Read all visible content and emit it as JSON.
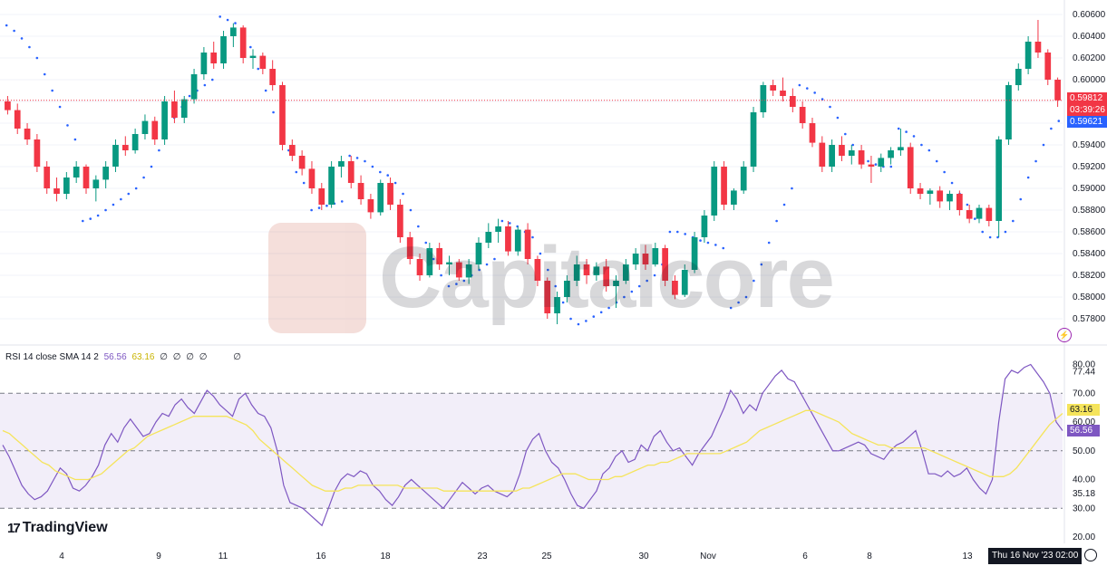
{
  "watermark": {
    "text": "Capitalcore"
  },
  "branding": {
    "logo_text": "TradingView",
    "logo_mark": "17"
  },
  "price_axis": {
    "ticks": [
      "0.60600",
      "0.60400",
      "0.60200",
      "0.60000",
      "0.59800",
      "0.59600",
      "0.59400",
      "0.59200",
      "0.59000",
      "0.58800",
      "0.58600",
      "0.58400",
      "0.58200",
      "0.58000",
      "0.57800"
    ],
    "last_price_label": "0.59812",
    "countdown_label": "03:39:26",
    "psar_label": "0.59621",
    "last_price_color": "#f23645",
    "psar_color": "#2962ff"
  },
  "rsi_axis": {
    "ticks": [
      "80.00",
      "77.44",
      "70.00",
      "60.00",
      "50.00",
      "40.00",
      "35.18",
      "30.00",
      "20.00"
    ],
    "rsi_label": "56.56",
    "sma_label": "63.16",
    "rsi_color": "#7e57c2",
    "sma_color": "#f5e45b"
  },
  "rsi_legend": {
    "title": "RSI 14 close SMA 14 2",
    "rsi_value": "56.56",
    "sma_value": "63.16",
    "extra": [
      "∅",
      "∅",
      "∅",
      "∅",
      "∅"
    ]
  },
  "time_axis": {
    "labels": [
      "4",
      "9",
      "11",
      "16",
      "18",
      "23",
      "25",
      "30",
      "Nov",
      "6",
      "8",
      "13"
    ],
    "cursor_label": "Thu 16 Nov '23   02:00"
  },
  "colors": {
    "up": "#089981",
    "down": "#f23645",
    "psar": "#2962ff"
  },
  "chart_data": [
    {
      "type": "candlestick",
      "title": "",
      "timeframe": "4h",
      "x_range": [
        "Oct 2 2023",
        "Nov 16 2023"
      ],
      "ylim": [
        0.577,
        0.6065
      ],
      "candles_ohlc": [
        [
          0.598,
          0.5985,
          0.5968,
          0.5972
        ],
        [
          0.5972,
          0.5978,
          0.595,
          0.5955
        ],
        [
          0.5955,
          0.596,
          0.594,
          0.5945
        ],
        [
          0.5945,
          0.595,
          0.5915,
          0.592
        ],
        [
          0.592,
          0.5925,
          0.5895,
          0.59
        ],
        [
          0.59,
          0.591,
          0.5888,
          0.5895
        ],
        [
          0.5895,
          0.5915,
          0.589,
          0.591
        ],
        [
          0.591,
          0.5925,
          0.5905,
          0.592
        ],
        [
          0.592,
          0.5922,
          0.5895,
          0.59
        ],
        [
          0.59,
          0.5912,
          0.5888,
          0.5908
        ],
        [
          0.5908,
          0.5925,
          0.59,
          0.592
        ],
        [
          0.592,
          0.5945,
          0.5915,
          0.594
        ],
        [
          0.594,
          0.5948,
          0.593,
          0.5935
        ],
        [
          0.5935,
          0.5955,
          0.5932,
          0.595
        ],
        [
          0.595,
          0.5968,
          0.5945,
          0.5962
        ],
        [
          0.5962,
          0.5966,
          0.594,
          0.5945
        ],
        [
          0.5945,
          0.5985,
          0.594,
          0.598
        ],
        [
          0.598,
          0.599,
          0.596,
          0.5965
        ],
        [
          0.5965,
          0.5985,
          0.596,
          0.5982
        ],
        [
          0.5982,
          0.601,
          0.5978,
          0.6005
        ],
        [
          0.6005,
          0.603,
          0.6,
          0.6025
        ],
        [
          0.6025,
          0.6035,
          0.601,
          0.6015
        ],
        [
          0.6015,
          0.6045,
          0.601,
          0.604
        ],
        [
          0.604,
          0.6052,
          0.603,
          0.6048
        ],
        [
          0.6048,
          0.605,
          0.6015,
          0.602
        ],
        [
          0.602,
          0.6028,
          0.601,
          0.6022
        ],
        [
          0.6022,
          0.6025,
          0.6005,
          0.601
        ],
        [
          0.601,
          0.6018,
          0.599,
          0.5995
        ],
        [
          0.5995,
          0.5998,
          0.5935,
          0.594
        ],
        [
          0.594,
          0.5945,
          0.5925,
          0.593
        ],
        [
          0.593,
          0.5935,
          0.5912,
          0.5918
        ],
        [
          0.5918,
          0.5925,
          0.5895,
          0.59
        ],
        [
          0.59,
          0.5905,
          0.588,
          0.5885
        ],
        [
          0.5885,
          0.5925,
          0.5882,
          0.592
        ],
        [
          0.592,
          0.593,
          0.591,
          0.5925
        ],
        [
          0.5925,
          0.593,
          0.59,
          0.5905
        ],
        [
          0.5905,
          0.5912,
          0.5885,
          0.589
        ],
        [
          0.589,
          0.5895,
          0.5872,
          0.5878
        ],
        [
          0.5878,
          0.5908,
          0.5875,
          0.5905
        ],
        [
          0.5905,
          0.591,
          0.588,
          0.5885
        ],
        [
          0.5885,
          0.589,
          0.585,
          0.5855
        ],
        [
          0.5855,
          0.586,
          0.583,
          0.5835
        ],
        [
          0.5835,
          0.584,
          0.5815,
          0.582
        ],
        [
          0.582,
          0.585,
          0.5818,
          0.5845
        ],
        [
          0.5845,
          0.585,
          0.5825,
          0.583
        ],
        [
          0.583,
          0.5838,
          0.582,
          0.5832
        ],
        [
          0.5832,
          0.5835,
          0.5815,
          0.5818
        ],
        [
          0.5818,
          0.5835,
          0.5812,
          0.583
        ],
        [
          0.583,
          0.5855,
          0.5825,
          0.585
        ],
        [
          0.585,
          0.5868,
          0.5845,
          0.586
        ],
        [
          0.586,
          0.5872,
          0.585,
          0.5865
        ],
        [
          0.5865,
          0.587,
          0.5838,
          0.5842
        ],
        [
          0.5842,
          0.5865,
          0.5838,
          0.5862
        ],
        [
          0.5862,
          0.5868,
          0.583,
          0.5835
        ],
        [
          0.5835,
          0.5838,
          0.581,
          0.5815
        ],
        [
          0.5815,
          0.5818,
          0.578,
          0.5785
        ],
        [
          0.5785,
          0.5805,
          0.5775,
          0.58
        ],
        [
          0.58,
          0.582,
          0.5795,
          0.5815
        ],
        [
          0.5815,
          0.5838,
          0.581,
          0.583
        ],
        [
          0.583,
          0.5835,
          0.5812,
          0.582
        ],
        [
          0.582,
          0.5832,
          0.5815,
          0.5828
        ],
        [
          0.5828,
          0.5835,
          0.5805,
          0.581
        ],
        [
          0.581,
          0.582,
          0.579,
          0.5815
        ],
        [
          0.5815,
          0.5835,
          0.5812,
          0.583
        ],
        [
          0.583,
          0.5845,
          0.5825,
          0.584
        ],
        [
          0.584,
          0.5848,
          0.5825,
          0.583
        ],
        [
          0.583,
          0.585,
          0.5828,
          0.5845
        ],
        [
          0.5845,
          0.5848,
          0.581,
          0.5815
        ],
        [
          0.5815,
          0.582,
          0.5798,
          0.5802
        ],
        [
          0.5802,
          0.583,
          0.58,
          0.5825
        ],
        [
          0.5825,
          0.586,
          0.5822,
          0.5855
        ],
        [
          0.5855,
          0.588,
          0.585,
          0.5875
        ],
        [
          0.5875,
          0.5925,
          0.587,
          0.592
        ],
        [
          0.592,
          0.5925,
          0.588,
          0.5885
        ],
        [
          0.5885,
          0.59,
          0.588,
          0.5898
        ],
        [
          0.5898,
          0.5925,
          0.5895,
          0.592
        ],
        [
          0.592,
          0.5975,
          0.5915,
          0.597
        ],
        [
          0.597,
          0.5998,
          0.5965,
          0.5995
        ],
        [
          0.5995,
          0.6,
          0.5985,
          0.599
        ],
        [
          0.599,
          0.6002,
          0.598,
          0.5985
        ],
        [
          0.5985,
          0.5992,
          0.597,
          0.5975
        ],
        [
          0.5975,
          0.598,
          0.5955,
          0.596
        ],
        [
          0.596,
          0.5965,
          0.5938,
          0.5942
        ],
        [
          0.5942,
          0.5948,
          0.5915,
          0.592
        ],
        [
          0.592,
          0.5945,
          0.5915,
          0.594
        ],
        [
          0.594,
          0.5948,
          0.5925,
          0.593
        ],
        [
          0.593,
          0.594,
          0.5922,
          0.5935
        ],
        [
          0.5935,
          0.594,
          0.5918,
          0.5922
        ],
        [
          0.5922,
          0.593,
          0.5905,
          0.592
        ],
        [
          0.592,
          0.5932,
          0.5915,
          0.5928
        ],
        [
          0.5928,
          0.5938,
          0.5922,
          0.5935
        ],
        [
          0.5935,
          0.5955,
          0.593,
          0.5938
        ],
        [
          0.5938,
          0.5942,
          0.5895,
          0.59
        ],
        [
          0.59,
          0.5905,
          0.589,
          0.5895
        ],
        [
          0.5895,
          0.59,
          0.5885,
          0.5898
        ],
        [
          0.5898,
          0.5902,
          0.5882,
          0.5888
        ],
        [
          0.5888,
          0.5898,
          0.588,
          0.5895
        ],
        [
          0.5895,
          0.5898,
          0.5875,
          0.588
        ],
        [
          0.588,
          0.5885,
          0.5868,
          0.5872
        ],
        [
          0.5872,
          0.5885,
          0.5868,
          0.5882
        ],
        [
          0.5882,
          0.5885,
          0.5865,
          0.587
        ],
        [
          0.587,
          0.5948,
          0.5855,
          0.5945
        ],
        [
          0.5945,
          0.5998,
          0.594,
          0.5995
        ],
        [
          0.5995,
          0.6015,
          0.599,
          0.601
        ],
        [
          0.601,
          0.604,
          0.6005,
          0.6035
        ],
        [
          0.6035,
          0.6055,
          0.602,
          0.6025
        ],
        [
          0.6025,
          0.6028,
          0.5995,
          0.6
        ],
        [
          0.6,
          0.6002,
          0.5975,
          0.5981
        ]
      ],
      "parabolic_sar_dots": [
        0.605,
        0.6045,
        0.6038,
        0.603,
        0.602,
        0.6005,
        0.599,
        0.5975,
        0.5958,
        0.5945,
        0.587,
        0.5872,
        0.5875,
        0.588,
        0.5885,
        0.589,
        0.5895,
        0.59,
        0.591,
        0.592,
        0.5935,
        0.595,
        0.5965,
        0.5975,
        0.5985,
        0.599,
        0.5995,
        0.6,
        0.6058,
        0.6055,
        0.6052,
        0.6045,
        0.603,
        0.601,
        0.599,
        0.597,
        0.595,
        0.5935,
        0.5915,
        0.5905,
        0.588,
        0.5882,
        0.5884,
        0.5886,
        0.5888,
        0.593,
        0.5928,
        0.5925,
        0.592,
        0.5915,
        0.5912,
        0.5905,
        0.5895,
        0.588,
        0.5865,
        0.585,
        0.5835,
        0.582,
        0.581,
        0.5812,
        0.5815,
        0.582,
        0.5825,
        0.583,
        0.5835,
        0.587,
        0.5868,
        0.5865,
        0.586,
        0.5855,
        0.584,
        0.5825,
        0.581,
        0.5795,
        0.578,
        0.5775,
        0.5778,
        0.5782,
        0.5786,
        0.579,
        0.5795,
        0.58,
        0.5805,
        0.581,
        0.5815,
        0.582,
        0.583,
        0.586,
        0.586,
        0.5858,
        0.5855,
        0.5852,
        0.585,
        0.5848,
        0.5845,
        0.579,
        0.5795,
        0.58,
        0.5815,
        0.583,
        0.585,
        0.587,
        0.5885,
        0.59,
        0.5995,
        0.5992,
        0.5988,
        0.5982,
        0.5975,
        0.5965,
        0.595,
        0.594,
        0.593,
        0.5925,
        0.5922,
        0.592,
        0.592,
        0.5955,
        0.5952,
        0.5948,
        0.594,
        0.5935,
        0.5925,
        0.5915,
        0.5905,
        0.5895,
        0.5885,
        0.5872,
        0.586,
        0.5855,
        0.5855,
        0.586,
        0.587,
        0.589,
        0.591,
        0.5925,
        0.594,
        0.5955,
        0.5962
      ]
    },
    {
      "type": "line",
      "title": "RSI 14 close SMA 14 2",
      "ylim": [
        20,
        83
      ],
      "levels": [
        70,
        50,
        30
      ],
      "series": [
        {
          "name": "RSI",
          "values": [
            52,
            48,
            43,
            38,
            35,
            33,
            34,
            36,
            40,
            44,
            42,
            37,
            36,
            38,
            41,
            45,
            52,
            56,
            53,
            58,
            61,
            58,
            55,
            56,
            60,
            63,
            62,
            66,
            68,
            65,
            63,
            67,
            71,
            69,
            66,
            64,
            62,
            68,
            70,
            66,
            63,
            62,
            58,
            50,
            38,
            32,
            31,
            30,
            28,
            26,
            24,
            30,
            36,
            40,
            42,
            41,
            43,
            42,
            38,
            36,
            33,
            31,
            34,
            38,
            40,
            38,
            36,
            34,
            32,
            30,
            33,
            36,
            39,
            37,
            35,
            37,
            38,
            36,
            35,
            34,
            36,
            42,
            50,
            54,
            56,
            50,
            46,
            44,
            40,
            35,
            31,
            30,
            33,
            36,
            42,
            44,
            48,
            50,
            46,
            47,
            52,
            50,
            55,
            57,
            53,
            50,
            51,
            48,
            45,
            49,
            52,
            55,
            60,
            65,
            71,
            68,
            63,
            66,
            64,
            70,
            73,
            76,
            78,
            75,
            74,
            70,
            66,
            62,
            58,
            54,
            50,
            50,
            51,
            52,
            53,
            52,
            49,
            48,
            47,
            50,
            52,
            53,
            55,
            57,
            50,
            42,
            42,
            41,
            43,
            41,
            42,
            44,
            40,
            37,
            35,
            40,
            60,
            75,
            78,
            77,
            79,
            80,
            77,
            74,
            70,
            60,
            57
          ]
        },
        {
          "name": "RSI-based MA",
          "values": [
            57,
            56,
            54,
            52,
            50,
            48,
            46,
            45,
            43,
            42,
            41,
            40,
            40,
            40,
            41,
            42,
            44,
            46,
            48,
            50,
            51,
            53,
            55,
            56,
            57,
            58,
            59,
            60,
            61,
            62,
            62,
            62,
            62,
            62,
            62,
            61,
            60,
            59,
            57,
            54,
            52,
            50,
            48,
            46,
            44,
            42,
            40,
            38,
            37,
            36,
            36,
            36,
            37,
            37,
            38,
            38,
            38,
            38,
            38,
            38,
            38,
            37,
            37,
            37,
            37,
            37,
            37,
            36,
            36,
            36,
            36,
            36,
            36,
            36,
            36,
            36,
            36,
            36,
            36,
            37,
            37,
            38,
            39,
            40,
            41,
            42,
            42,
            42,
            41,
            40,
            40,
            40,
            40,
            41,
            41,
            42,
            43,
            44,
            45,
            45,
            46,
            46,
            47,
            48,
            49,
            49,
            49,
            49,
            49,
            49,
            50,
            51,
            52,
            53,
            55,
            57,
            58,
            59,
            60,
            61,
            62,
            63,
            64,
            64,
            63,
            62,
            61,
            60,
            58,
            56,
            55,
            54,
            53,
            52,
            52,
            51,
            51,
            51,
            51,
            51,
            51,
            50,
            49,
            48,
            47,
            46,
            45,
            44,
            43,
            42,
            41,
            41,
            41,
            42,
            44,
            47,
            50,
            53,
            56,
            59,
            61,
            63
          ]
        }
      ]
    }
  ]
}
